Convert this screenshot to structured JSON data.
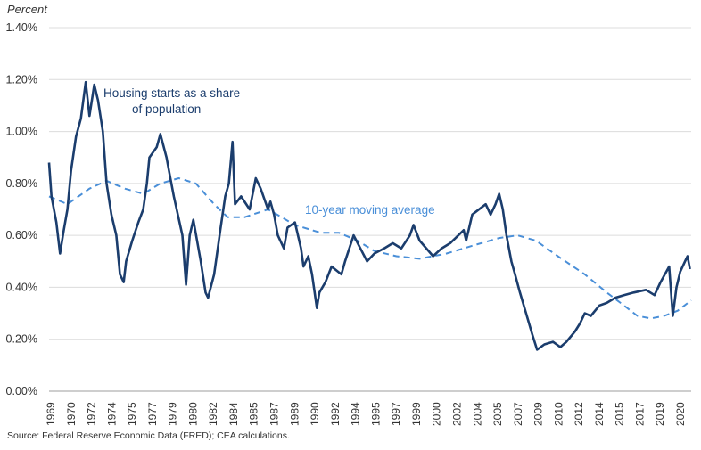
{
  "chart_data": {
    "type": "line",
    "ylabel": "Percent",
    "ylim": [
      0,
      1.4
    ],
    "yticks": [
      "0.00%",
      "0.20%",
      "0.40%",
      "0.60%",
      "0.80%",
      "1.00%",
      "1.20%",
      "1.40%"
    ],
    "ytick_values": [
      0,
      0.2,
      0.4,
      0.6,
      0.8,
      1.0,
      1.2,
      1.4
    ],
    "xlim": [
      1969,
      2021.5
    ],
    "xticks": [
      "1969",
      "1970",
      "1972",
      "1974",
      "1975",
      "1977",
      "1979",
      "1980",
      "1982",
      "1984",
      "1985",
      "1987",
      "1989",
      "1990",
      "1992",
      "1994",
      "1995",
      "1997",
      "1999",
      "2000",
      "2002",
      "2004",
      "2005",
      "2007",
      "2009",
      "2010",
      "2012",
      "2014",
      "2015",
      "2017",
      "2019",
      "2020"
    ],
    "grid": true,
    "series": [
      {
        "name": "Housing starts as a share of population",
        "style": "solid",
        "color": "#1b3d6d",
        "x": [
          1969.0,
          1969.2,
          1969.6,
          1969.9,
          1970.2,
          1970.5,
          1970.8,
          1971.2,
          1971.6,
          1972.0,
          1972.3,
          1972.7,
          1973.0,
          1973.4,
          1973.7,
          1974.1,
          1974.5,
          1974.8,
          1975.1,
          1975.3,
          1975.8,
          1976.3,
          1976.7,
          1977.0,
          1977.2,
          1977.8,
          1978.1,
          1978.6,
          1978.8,
          1979.2,
          1979.9,
          1980.2,
          1980.5,
          1980.8,
          1981.4,
          1981.8,
          1982.0,
          1982.5,
          1983.0,
          1983.4,
          1983.7,
          1984.0,
          1984.2,
          1984.7,
          1985.4,
          1985.9,
          1986.3,
          1986.9,
          1987.1,
          1987.4,
          1987.7,
          1988.2,
          1988.5,
          1989.1,
          1989.6,
          1989.8,
          1990.2,
          1990.5,
          1990.9,
          1991.1,
          1991.6,
          1992.1,
          1992.9,
          1993.2,
          1993.9,
          1995.0,
          1995.6,
          1996.4,
          1997.1,
          1997.8,
          1998.5,
          1998.8,
          1999.3,
          2000.4,
          2001.1,
          2001.8,
          2002.9,
          2003.1,
          2003.6,
          2004.7,
          2005.1,
          2005.5,
          2005.8,
          2006.1,
          2006.4,
          2006.8,
          2007.1,
          2007.5,
          2008.0,
          2008.5,
          2008.9,
          2009.5,
          2010.2,
          2010.8,
          2011.3,
          2012.0,
          2012.4,
          2012.8,
          2013.3,
          2014.0,
          2014.6,
          2015.3,
          2016.0,
          2016.8,
          2017.8,
          2018.5,
          2019.0,
          2019.7,
          2020.0,
          2020.3,
          2020.6,
          2021.0,
          2021.2,
          2021.4
        ],
        "y": [
          0.88,
          0.75,
          0.65,
          0.53,
          0.62,
          0.7,
          0.85,
          0.98,
          1.05,
          1.19,
          1.06,
          1.18,
          1.12,
          1.0,
          0.8,
          0.68,
          0.6,
          0.45,
          0.42,
          0.5,
          0.58,
          0.65,
          0.7,
          0.8,
          0.9,
          0.94,
          0.99,
          0.9,
          0.85,
          0.75,
          0.6,
          0.41,
          0.6,
          0.66,
          0.5,
          0.38,
          0.36,
          0.45,
          0.62,
          0.75,
          0.8,
          0.96,
          0.72,
          0.75,
          0.7,
          0.82,
          0.78,
          0.7,
          0.73,
          0.68,
          0.6,
          0.55,
          0.63,
          0.65,
          0.55,
          0.48,
          0.52,
          0.45,
          0.32,
          0.38,
          0.42,
          0.48,
          0.45,
          0.5,
          0.6,
          0.5,
          0.53,
          0.55,
          0.57,
          0.55,
          0.6,
          0.64,
          0.58,
          0.52,
          0.55,
          0.57,
          0.62,
          0.58,
          0.68,
          0.72,
          0.68,
          0.72,
          0.76,
          0.7,
          0.6,
          0.5,
          0.45,
          0.38,
          0.3,
          0.22,
          0.16,
          0.18,
          0.19,
          0.17,
          0.19,
          0.23,
          0.26,
          0.3,
          0.29,
          0.33,
          0.34,
          0.36,
          0.37,
          0.38,
          0.39,
          0.37,
          0.42,
          0.48,
          0.29,
          0.4,
          0.46,
          0.5,
          0.52,
          0.47
        ]
      },
      {
        "name": "10-year moving average",
        "style": "dashed",
        "color": "#4a8fd8",
        "x": [
          1969.0,
          1970.5,
          1972.3,
          1973.7,
          1975.2,
          1976.7,
          1978.1,
          1979.6,
          1981.0,
          1982.5,
          1983.6,
          1985.0,
          1986.9,
          1988.0,
          1989.1,
          1991.2,
          1992.7,
          1994.2,
          1995.6,
          1997.4,
          1999.3,
          2001.5,
          2003.6,
          2005.8,
          2007.3,
          2008.8,
          2010.6,
          2012.8,
          2014.6,
          2016.0,
          2017.1,
          2018.2,
          2019.3,
          2020.4,
          2021.5
        ],
        "y": [
          0.75,
          0.72,
          0.78,
          0.81,
          0.78,
          0.76,
          0.8,
          0.82,
          0.8,
          0.72,
          0.67,
          0.67,
          0.7,
          0.67,
          0.64,
          0.61,
          0.61,
          0.58,
          0.54,
          0.52,
          0.51,
          0.53,
          0.56,
          0.59,
          0.6,
          0.58,
          0.52,
          0.45,
          0.38,
          0.33,
          0.29,
          0.28,
          0.29,
          0.31,
          0.35
        ]
      }
    ],
    "annotations": {
      "housing_line1": "Housing starts as a share",
      "housing_line2": "of population",
      "moving_avg": "10-year moving average"
    }
  },
  "source": "Source: Federal Reserve Economic Data (FRED); CEA calculations."
}
